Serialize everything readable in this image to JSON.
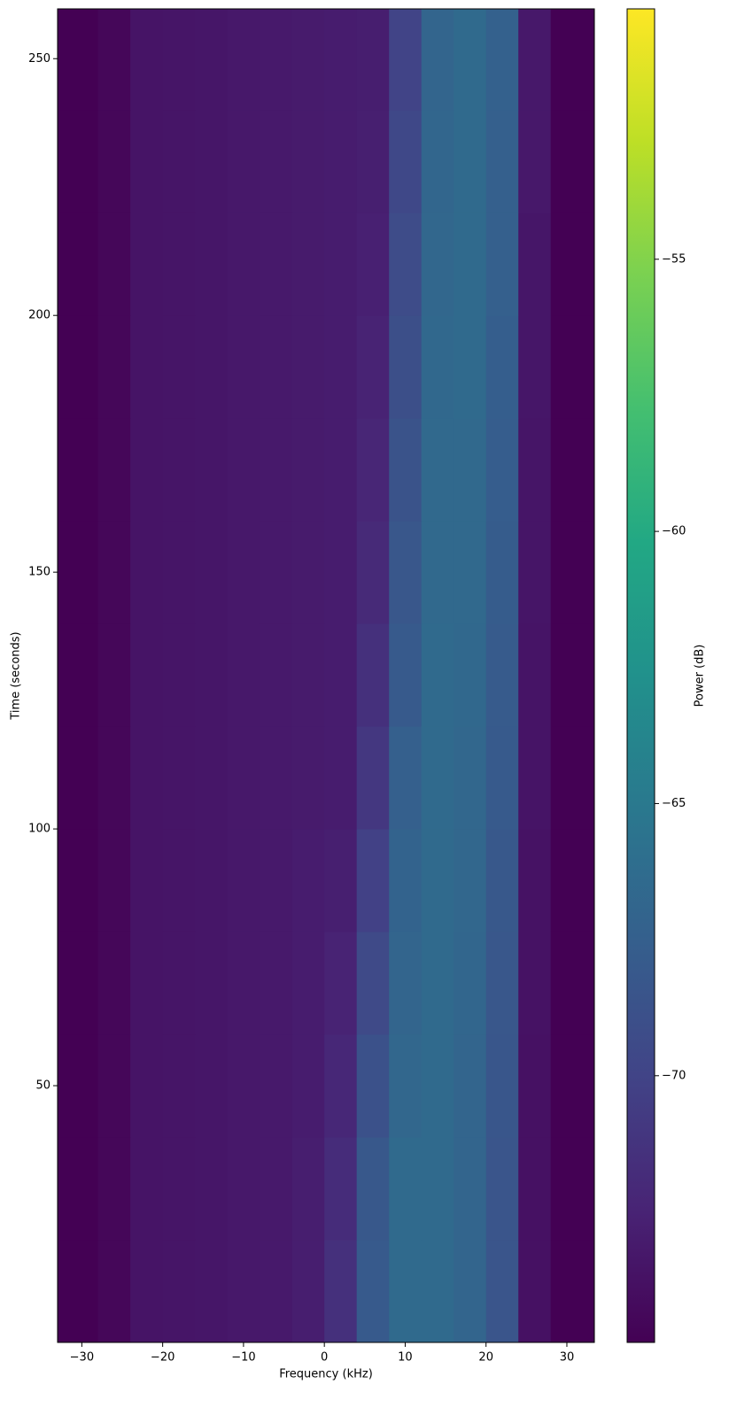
{
  "chart_data": {
    "type": "heatmap",
    "xlabel": "Frequency (kHz)",
    "ylabel": "Time (seconds)",
    "colorbar_label": "Power (dB)",
    "colormap": "viridis",
    "xlim": [
      -33,
      33.4
    ],
    "ylim": [
      0,
      259.7
    ],
    "zlim": [
      -74.9,
      -50.4
    ],
    "xticks": [
      {
        "value": -30,
        "label": "−30"
      },
      {
        "value": -20,
        "label": "−20"
      },
      {
        "value": -10,
        "label": "−10"
      },
      0,
      10,
      20,
      30
    ],
    "yticks": [
      50,
      100,
      150,
      200,
      250
    ],
    "zticks": [
      {
        "value": -70,
        "label": "−70"
      },
      {
        "value": -65,
        "label": "−65"
      },
      {
        "value": -60,
        "label": "−60"
      },
      {
        "value": -55,
        "label": "−55"
      }
    ],
    "x_bins": [
      -33,
      -28,
      -24,
      -20,
      -16,
      -12,
      -8,
      -4,
      0,
      4,
      8,
      12,
      16,
      20,
      24,
      28,
      33.4
    ],
    "y_bins": [
      0,
      20,
      40,
      60,
      80,
      100,
      120,
      140,
      160,
      180,
      200,
      220,
      240,
      259.7
    ],
    "z": [
      [
        -74.9,
        -74.5,
        -73.6,
        -73.5,
        -73.4,
        -73.3,
        -73.2,
        -72.9,
        -71.5,
        -68.0,
        -66.5,
        -66.5,
        -67.0,
        -68.5,
        -73.8,
        -74.9
      ],
      [
        -74.9,
        -74.5,
        -73.6,
        -73.5,
        -73.4,
        -73.3,
        -73.2,
        -72.9,
        -71.8,
        -68.2,
        -66.5,
        -66.5,
        -67.0,
        -68.5,
        -73.8,
        -74.9
      ],
      [
        -74.9,
        -74.5,
        -73.6,
        -73.5,
        -73.4,
        -73.3,
        -73.2,
        -73.0,
        -72.2,
        -68.8,
        -66.8,
        -66.5,
        -67.0,
        -68.4,
        -73.8,
        -74.9
      ],
      [
        -74.9,
        -74.5,
        -73.6,
        -73.5,
        -73.4,
        -73.3,
        -73.2,
        -73.0,
        -72.5,
        -69.5,
        -67.0,
        -66.5,
        -66.9,
        -68.3,
        -73.7,
        -74.9
      ],
      [
        -74.9,
        -74.5,
        -73.6,
        -73.5,
        -73.4,
        -73.3,
        -73.2,
        -73.0,
        -72.8,
        -70.2,
        -67.2,
        -66.5,
        -66.8,
        -68.2,
        -73.7,
        -74.9
      ],
      [
        -74.9,
        -74.5,
        -73.6,
        -73.5,
        -73.4,
        -73.3,
        -73.2,
        -73.1,
        -73.0,
        -71.0,
        -67.5,
        -66.5,
        -66.8,
        -68.0,
        -73.6,
        -74.9
      ],
      [
        -74.9,
        -74.5,
        -73.6,
        -73.5,
        -73.4,
        -73.3,
        -73.2,
        -73.1,
        -73.0,
        -71.5,
        -68.0,
        -66.5,
        -66.7,
        -67.9,
        -73.6,
        -74.9
      ],
      [
        -74.9,
        -74.5,
        -73.6,
        -73.5,
        -73.4,
        -73.3,
        -73.2,
        -73.1,
        -73.0,
        -72.0,
        -68.3,
        -66.6,
        -66.6,
        -67.8,
        -73.5,
        -74.9
      ],
      [
        -74.9,
        -74.5,
        -73.6,
        -73.5,
        -73.4,
        -73.3,
        -73.2,
        -73.1,
        -73.0,
        -72.3,
        -68.6,
        -66.6,
        -66.6,
        -67.7,
        -73.5,
        -74.9
      ],
      [
        -74.9,
        -74.5,
        -73.6,
        -73.5,
        -73.4,
        -73.3,
        -73.2,
        -73.1,
        -73.0,
        -72.5,
        -69.0,
        -66.7,
        -66.5,
        -67.6,
        -73.4,
        -74.9
      ],
      [
        -74.9,
        -74.5,
        -73.6,
        -73.5,
        -73.4,
        -73.3,
        -73.2,
        -73.1,
        -73.0,
        -72.7,
        -69.3,
        -66.8,
        -66.5,
        -67.5,
        -73.4,
        -74.9
      ],
      [
        -74.9,
        -74.5,
        -73.6,
        -73.5,
        -73.4,
        -73.3,
        -73.2,
        -73.1,
        -73.0,
        -72.8,
        -69.6,
        -66.9,
        -66.5,
        -67.5,
        -73.3,
        -74.9
      ],
      [
        -74.9,
        -74.5,
        -73.6,
        -73.5,
        -73.4,
        -73.3,
        -73.2,
        -73.1,
        -73.0,
        -72.9,
        -70.0,
        -67.0,
        -66.5,
        -67.4,
        -73.3,
        -74.9
      ]
    ]
  }
}
